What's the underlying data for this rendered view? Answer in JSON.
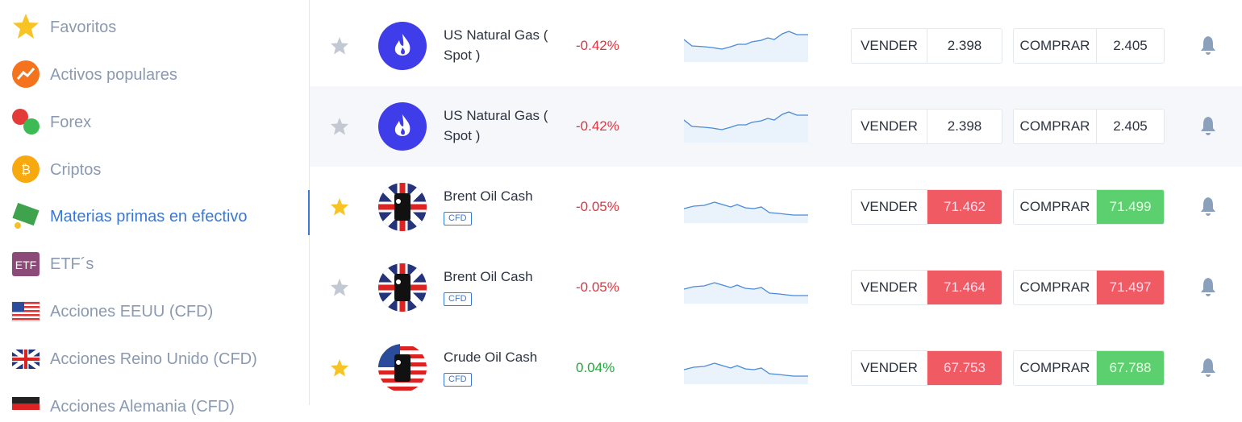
{
  "sidebar": {
    "items": [
      {
        "label": "Favoritos",
        "active": false
      },
      {
        "label": "Activos populares",
        "active": false
      },
      {
        "label": "Forex",
        "active": false
      },
      {
        "label": "Criptos",
        "active": false
      },
      {
        "label": "Materias primas en efectivo",
        "active": true
      },
      {
        "label": "ETF´s",
        "active": false
      },
      {
        "label": "Acciones EEUU (CFD)",
        "active": false
      },
      {
        "label": "Acciones Reino Unido (CFD)",
        "active": false
      },
      {
        "label": "Acciones Alemania (CFD)",
        "active": false
      }
    ]
  },
  "table": {
    "sell_label": "VENDER",
    "buy_label": "COMPRAR",
    "rows": [
      {
        "favorite": false,
        "name": "US Natural Gas ( Spot )",
        "change": "-0.42%",
        "sell": "2.398",
        "buy": "2.405",
        "sell_state": "neutral",
        "buy_state": "neutral"
      },
      {
        "favorite": false,
        "name": "US Natural Gas ( Spot )",
        "change": "-0.42%",
        "sell": "2.398",
        "buy": "2.405",
        "sell_state": "neutral",
        "buy_state": "neutral"
      },
      {
        "favorite": true,
        "name": "Brent Oil Cash",
        "badge": "CFD",
        "change": "-0.05%",
        "sell": "71.462",
        "buy": "71.499",
        "sell_state": "down",
        "buy_state": "up"
      },
      {
        "favorite": false,
        "name": "Brent Oil Cash",
        "badge": "CFD",
        "change": "-0.05%",
        "sell": "71.464",
        "buy": "71.497",
        "sell_state": "down",
        "buy_state": "down"
      },
      {
        "favorite": true,
        "name": "Crude Oil Cash",
        "badge": "CFD",
        "change": "0.04%",
        "sell": "67.753",
        "buy": "67.788",
        "sell_state": "down",
        "buy_state": "up"
      }
    ]
  }
}
